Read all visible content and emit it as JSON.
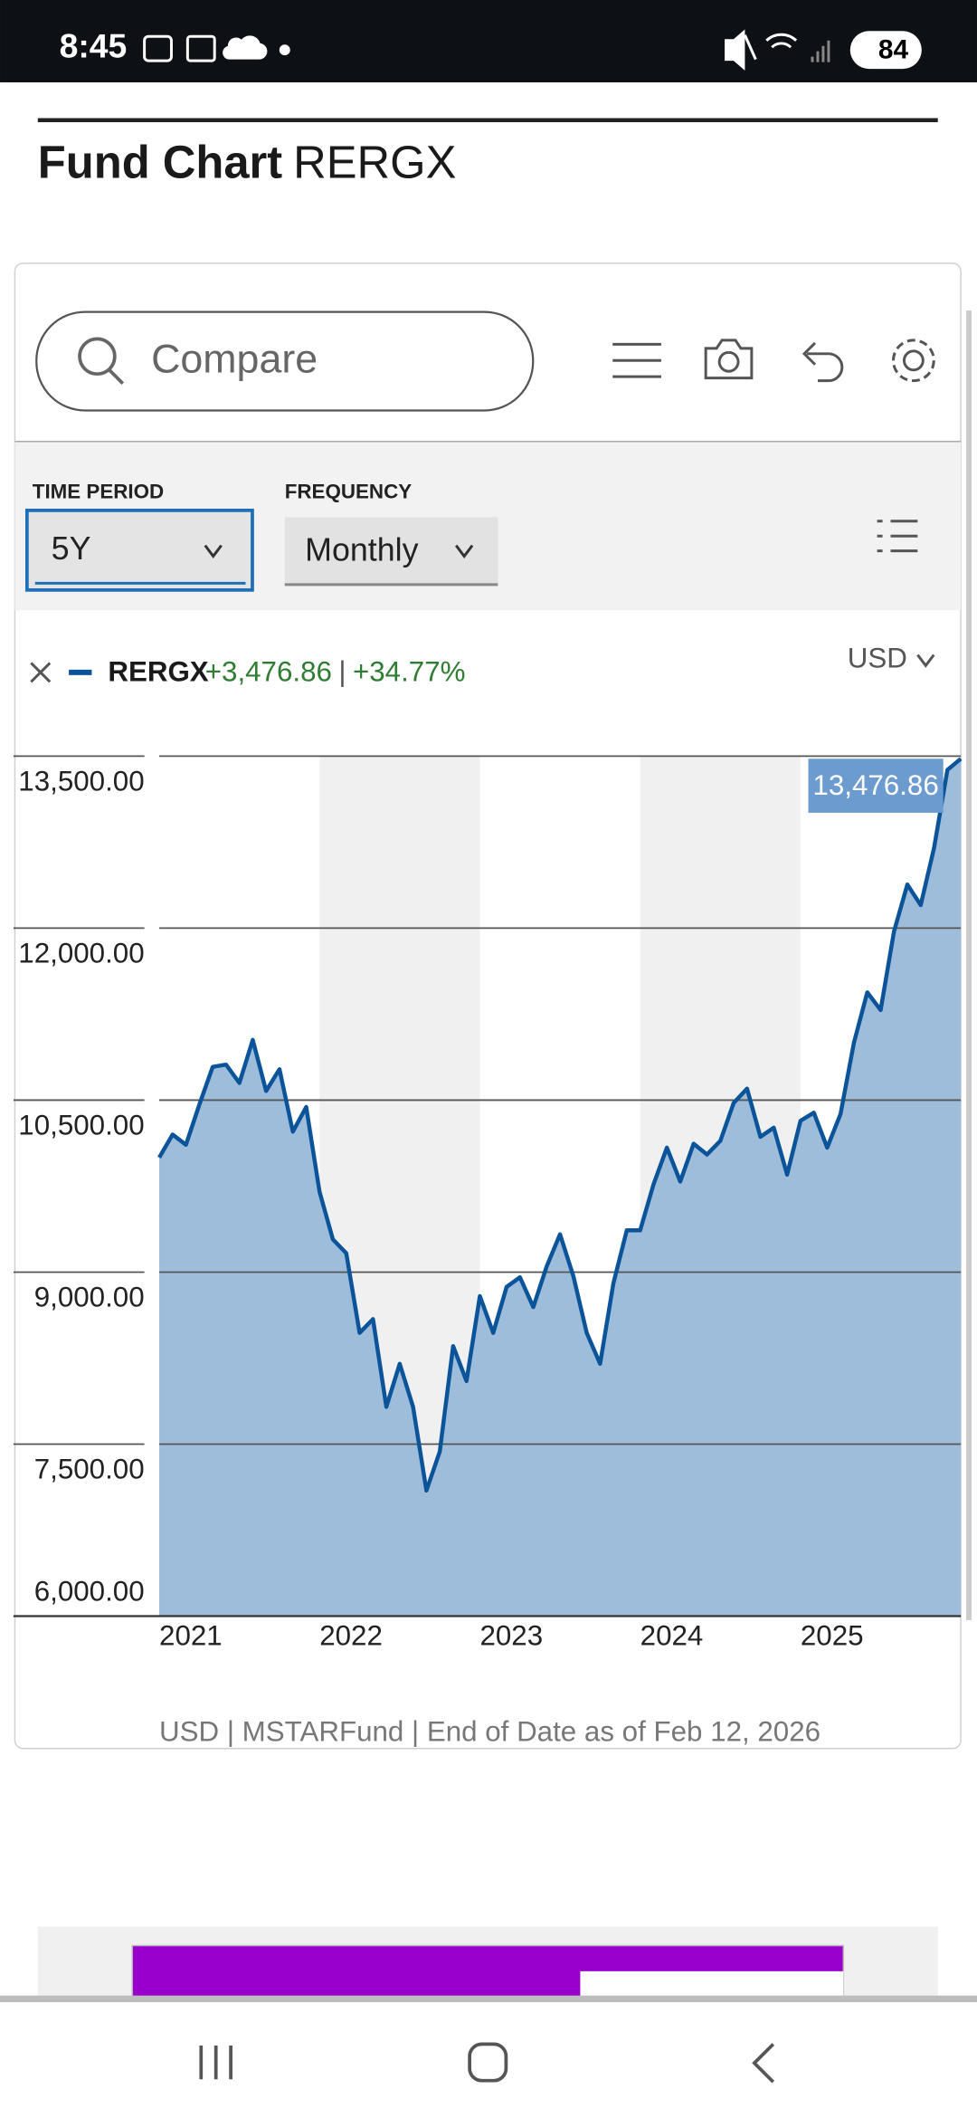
{
  "status_bar": {
    "time": "8:45",
    "battery": "84"
  },
  "page_title": {
    "label": "Fund Chart",
    "ticker": "RERGX"
  },
  "toolbar": {
    "search_placeholder": "Compare"
  },
  "controls": {
    "time_period_label": "TIME PERIOD",
    "time_period": "5Y",
    "frequency_label": "FREQUENCY",
    "frequency": "Monthly"
  },
  "legend": {
    "change": "+3,476.86",
    "separator": "|",
    "change_pct": "+34.77%",
    "currency": "USD"
  },
  "footer": "USD | MSTARFund | End of Date as of Feb 12, 2026",
  "chart_data": {
    "type": "line",
    "categories": [
      "2021",
      null,
      null,
      null,
      null,
      null,
      null,
      null,
      null,
      null,
      null,
      null,
      "2022",
      null,
      null,
      null,
      null,
      null,
      null,
      null,
      null,
      null,
      null,
      null,
      "2023",
      null,
      null,
      null,
      null,
      null,
      null,
      null,
      null,
      null,
      null,
      null,
      "2024",
      null,
      null,
      null,
      null,
      null,
      null,
      null,
      null,
      null,
      null,
      null,
      "2025",
      null,
      null,
      null,
      null,
      null,
      null,
      null,
      null,
      null,
      null,
      null,
      null
    ],
    "series": [
      {
        "name": "RERGX",
        "color": "#0b5499",
        "fill": "#99b9d9",
        "values": [
          10000,
          10200,
          10110,
          10460,
          10790,
          10810,
          10650,
          11025,
          10580,
          10770,
          10225,
          10440,
          9700,
          9285,
          9165,
          8470,
          8590,
          7825,
          8200,
          7825,
          7095,
          7435,
          8355,
          8050,
          8790,
          8470,
          8870,
          8955,
          8695,
          9050,
          9330,
          8965,
          8470,
          8200,
          8905,
          9365,
          9365,
          9765,
          10085,
          9790,
          10120,
          10025,
          10145,
          10475,
          10600,
          10180,
          10260,
          9850,
          10320,
          10390,
          10085,
          10380,
          11000,
          11440,
          11285,
          11970,
          12380,
          12200,
          12700,
          13380,
          13476.86
        ],
        "value_labels": [
          null,
          null,
          null,
          null,
          null,
          null,
          null,
          null,
          null,
          null,
          null,
          null,
          null,
          null,
          null,
          null,
          null,
          null,
          null,
          null,
          null,
          null,
          null,
          null,
          null,
          null,
          null,
          null,
          null,
          null,
          null,
          null,
          null,
          null,
          null,
          null,
          null,
          null,
          null,
          null,
          null,
          null,
          null,
          null,
          null,
          null,
          null,
          null,
          null,
          null,
          null,
          null,
          null,
          null,
          null,
          null,
          null,
          null,
          null,
          null,
          "13,476.86"
        ]
      }
    ],
    "ylim": [
      6000,
      13500
    ],
    "yticks": [
      {
        "value": 6000,
        "label": "6,000.00"
      },
      {
        "value": 7500,
        "label": "7,500.00"
      },
      {
        "value": 9000,
        "label": "9,000.00"
      },
      {
        "value": 10500,
        "label": "10,500.00"
      },
      {
        "value": 12000,
        "label": "12,000.00"
      },
      {
        "value": 13500,
        "label": "13,500.00"
      }
    ],
    "grid": true,
    "year_shading": true
  }
}
